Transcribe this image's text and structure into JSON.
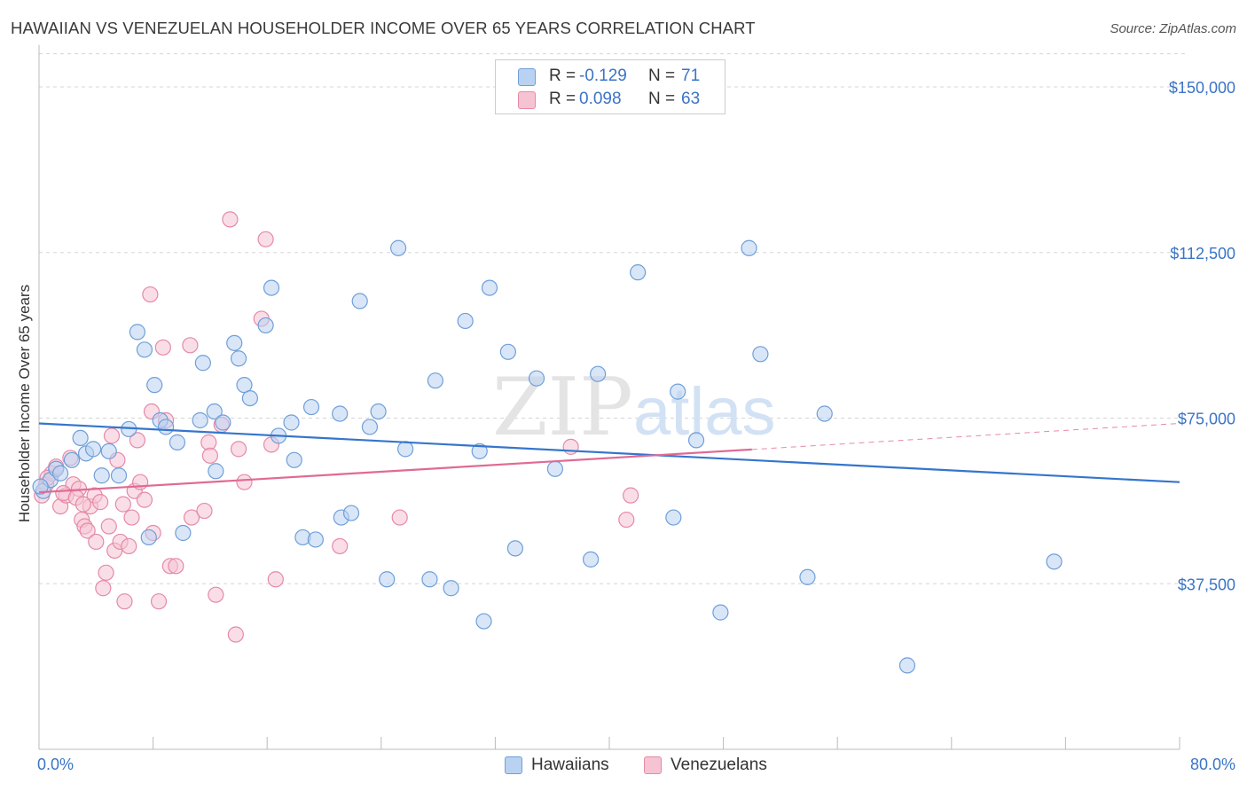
{
  "title": "HAWAIIAN VS VENEZUELAN HOUSEHOLDER INCOME OVER 65 YEARS CORRELATION CHART",
  "source": "Source: ZipAtlas.com",
  "watermark": {
    "zip": "ZIP",
    "atlas": "atlas"
  },
  "legend": {
    "rows": [
      {
        "r_label": "R =",
        "r_value": "-0.129",
        "n_label": "N =",
        "n_value": "71"
      },
      {
        "r_label": "R =",
        "r_value": "0.098",
        "n_label": "N =",
        "n_value": "63"
      }
    ],
    "bottom": [
      "Hawaiians",
      "Venezuelans"
    ]
  },
  "colors": {
    "blue_fill": "#b9d2f2",
    "blue_stroke": "#6f9fd8",
    "blue_line": "#3575cc",
    "pink_fill": "#f6c3d3",
    "pink_stroke": "#e58aa7",
    "pink_line": "#e06a93",
    "tick_text": "#3b74c6",
    "grid": "#d5d5d5"
  },
  "chart_data": {
    "type": "scatter",
    "title": "HAWAIIAN VS VENEZUELAN HOUSEHOLDER INCOME OVER 65 YEARS CORRELATION CHART",
    "xlabel": "",
    "ylabel": "Householder Income Over 65 years",
    "xlim": [
      0,
      80
    ],
    "ylim": [
      0,
      157500
    ],
    "x_tick_labels": [
      "0.0%",
      "80.0%"
    ],
    "y_ticks": [
      37500,
      75000,
      112500,
      150000
    ],
    "y_tick_labels": [
      "$37,500",
      "$75,000",
      "$112,500",
      "$150,000"
    ],
    "grid": true,
    "legend_position": "top-center",
    "series": [
      {
        "name": "Hawaiians",
        "r": -0.129,
        "n": 71,
        "trend": {
          "x": [
            0,
            80
          ],
          "y": [
            73800,
            60500
          ]
        },
        "points": [
          [
            0.3,
            58500
          ],
          [
            0.8,
            61000
          ],
          [
            1.2,
            63500
          ],
          [
            1.5,
            62500
          ],
          [
            2.3,
            65500
          ],
          [
            2.9,
            70500
          ],
          [
            3.3,
            67000
          ],
          [
            3.8,
            68000
          ],
          [
            4.4,
            62000
          ],
          [
            4.9,
            67500
          ],
          [
            5.6,
            62000
          ],
          [
            6.3,
            72500
          ],
          [
            6.9,
            94500
          ],
          [
            7.4,
            90500
          ],
          [
            7.7,
            48000
          ],
          [
            8.1,
            82500
          ],
          [
            8.5,
            74500
          ],
          [
            8.9,
            73000
          ],
          [
            9.7,
            69500
          ],
          [
            10.1,
            49000
          ],
          [
            11.3,
            74500
          ],
          [
            11.5,
            87500
          ],
          [
            12.4,
            63000
          ],
          [
            12.3,
            76500
          ],
          [
            12.9,
            74000
          ],
          [
            13.7,
            92000
          ],
          [
            14.0,
            88500
          ],
          [
            14.4,
            82500
          ],
          [
            14.8,
            79500
          ],
          [
            15.9,
            96000
          ],
          [
            16.3,
            104500
          ],
          [
            16.8,
            71000
          ],
          [
            17.7,
            74000
          ],
          [
            17.9,
            65500
          ],
          [
            18.5,
            48000
          ],
          [
            19.1,
            77500
          ],
          [
            19.4,
            47500
          ],
          [
            21.1,
            76000
          ],
          [
            21.2,
            52500
          ],
          [
            21.9,
            53500
          ],
          [
            22.5,
            101500
          ],
          [
            23.2,
            73000
          ],
          [
            23.8,
            76500
          ],
          [
            24.4,
            38500
          ],
          [
            25.2,
            113500
          ],
          [
            25.7,
            68000
          ],
          [
            27.4,
            38500
          ],
          [
            27.8,
            83500
          ],
          [
            28.9,
            36500
          ],
          [
            29.9,
            97000
          ],
          [
            30.9,
            67500
          ],
          [
            31.2,
            29000
          ],
          [
            31.6,
            104500
          ],
          [
            32.9,
            90000
          ],
          [
            33.4,
            45500
          ],
          [
            34.9,
            84000
          ],
          [
            36.2,
            63500
          ],
          [
            38.7,
            43000
          ],
          [
            39.2,
            85000
          ],
          [
            42.0,
            108000
          ],
          [
            44.5,
            52500
          ],
          [
            44.8,
            81000
          ],
          [
            46.1,
            70000
          ],
          [
            47.8,
            31000
          ],
          [
            49.8,
            113500
          ],
          [
            50.6,
            89500
          ],
          [
            53.9,
            39000
          ],
          [
            55.1,
            76000
          ],
          [
            60.9,
            19000
          ],
          [
            71.2,
            42500
          ],
          [
            0.1,
            59500
          ]
        ]
      },
      {
        "name": "Venezuelans",
        "r": 0.098,
        "n": 63,
        "trend": {
          "x": [
            0,
            50
          ],
          "y": [
            58200,
            67900
          ]
        },
        "trend_dashed": {
          "x": [
            50,
            80
          ],
          "y": [
            67900,
            73800
          ]
        },
        "points": [
          [
            0.2,
            57500
          ],
          [
            0.5,
            60000
          ],
          [
            0.9,
            62500
          ],
          [
            1.2,
            64000
          ],
          [
            1.5,
            55000
          ],
          [
            1.9,
            57500
          ],
          [
            2.2,
            66000
          ],
          [
            2.4,
            60000
          ],
          [
            2.8,
            59000
          ],
          [
            3.0,
            52000
          ],
          [
            3.2,
            50500
          ],
          [
            3.4,
            49500
          ],
          [
            3.6,
            55000
          ],
          [
            3.9,
            57500
          ],
          [
            4.0,
            47000
          ],
          [
            4.3,
            56000
          ],
          [
            4.5,
            36500
          ],
          [
            4.7,
            40000
          ],
          [
            4.9,
            50500
          ],
          [
            5.1,
            71000
          ],
          [
            5.3,
            45000
          ],
          [
            5.5,
            65500
          ],
          [
            5.7,
            47000
          ],
          [
            5.9,
            55500
          ],
          [
            6.0,
            33500
          ],
          [
            6.3,
            46000
          ],
          [
            6.5,
            52500
          ],
          [
            6.7,
            58500
          ],
          [
            6.9,
            70000
          ],
          [
            7.1,
            60500
          ],
          [
            7.4,
            56500
          ],
          [
            7.8,
            103000
          ],
          [
            7.9,
            76500
          ],
          [
            8.0,
            49000
          ],
          [
            8.4,
            33500
          ],
          [
            8.7,
            91000
          ],
          [
            8.9,
            74500
          ],
          [
            9.2,
            41500
          ],
          [
            9.6,
            41500
          ],
          [
            10.6,
            91500
          ],
          [
            10.7,
            52500
          ],
          [
            11.6,
            54000
          ],
          [
            11.9,
            69500
          ],
          [
            12.0,
            66500
          ],
          [
            12.4,
            35000
          ],
          [
            12.8,
            73500
          ],
          [
            13.4,
            120000
          ],
          [
            13.8,
            26000
          ],
          [
            14.0,
            68000
          ],
          [
            14.4,
            60500
          ],
          [
            15.6,
            97500
          ],
          [
            15.9,
            115500
          ],
          [
            16.3,
            69000
          ],
          [
            16.6,
            38500
          ],
          [
            21.1,
            46000
          ],
          [
            25.3,
            52500
          ],
          [
            37.3,
            68500
          ],
          [
            41.2,
            52000
          ],
          [
            41.5,
            57500
          ],
          [
            0.6,
            61500
          ],
          [
            1.7,
            58000
          ],
          [
            2.6,
            57000
          ],
          [
            3.1,
            55500
          ]
        ]
      }
    ]
  }
}
